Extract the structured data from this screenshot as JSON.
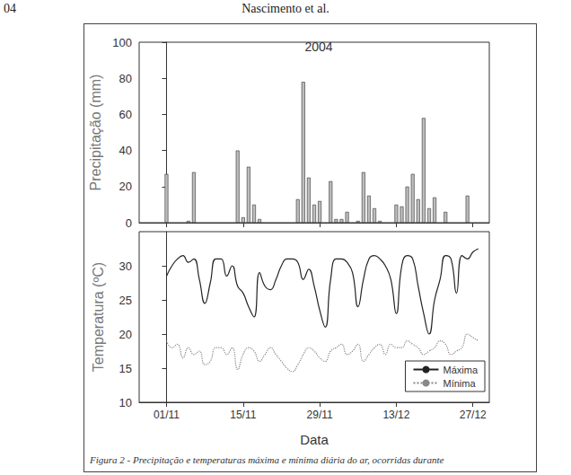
{
  "header": {
    "page": "04",
    "authors": "Nascimento et al."
  },
  "caption": "Figura 2 - Precipitação e temperaturas máxima e mínima diária do ar, ocorridas durante",
  "chart_data": [
    {
      "type": "bar",
      "title": "2004",
      "ylabel": "Precipitação (mm)",
      "x": [
        0,
        4,
        5,
        13,
        14,
        15,
        16,
        17,
        24,
        25,
        26,
        27,
        28,
        30,
        31,
        32,
        33,
        35,
        36,
        37,
        38,
        39,
        42,
        43,
        44,
        45,
        46,
        47,
        48,
        49,
        51,
        55
      ],
      "values": [
        27,
        1,
        28,
        40,
        3,
        31,
        10,
        2,
        13,
        78,
        25,
        10,
        12,
        23,
        2,
        2,
        6,
        1,
        28,
        15,
        8,
        1,
        10,
        9,
        20,
        27,
        13,
        58,
        8,
        14,
        6,
        15
      ],
      "color": "#bdbdbd",
      "xlim": [
        -5,
        59
      ],
      "xticks": [
        {
          "value": 0,
          "label": "01/11"
        },
        {
          "value": 14,
          "label": "15/11"
        },
        {
          "value": 28,
          "label": "29/11"
        },
        {
          "value": 42,
          "label": "13/12"
        },
        {
          "value": 56,
          "label": "27/12"
        }
      ],
      "ylim": [
        0,
        100
      ],
      "yticks": [
        0,
        20,
        40,
        60,
        80,
        100
      ],
      "tick_labels": "y",
      "grid": false
    },
    {
      "type": "line",
      "xlabel": "Data",
      "ylabel": "Temperatura (ºC)",
      "x": [
        0,
        1,
        2,
        3,
        4,
        5,
        6,
        7,
        8,
        9,
        10,
        11,
        12,
        13,
        14,
        15,
        16,
        17,
        18,
        19,
        20,
        21,
        22,
        23,
        24,
        25,
        26,
        27,
        28,
        29,
        30,
        31,
        32,
        33,
        34,
        35,
        36,
        37,
        38,
        39,
        40,
        41,
        42,
        43,
        44,
        45,
        46,
        47,
        48,
        49,
        50,
        51,
        52,
        53,
        54,
        55,
        56,
        57
      ],
      "series": [
        {
          "name": "Máxima",
          "color": "#222222",
          "line_style": "solid",
          "values": [
            28.5,
            30,
            31,
            31.5,
            30.5,
            31,
            28,
            24.5,
            27.5,
            31,
            31,
            28.5,
            30,
            27,
            26,
            24,
            22.5,
            29,
            27,
            26.5,
            28,
            30,
            31,
            31,
            30.5,
            28,
            29.5,
            27,
            23.5,
            21,
            28,
            31,
            31,
            30.5,
            29,
            24,
            28,
            31,
            31.5,
            31,
            30,
            28,
            23,
            30,
            31.5,
            31,
            27,
            23,
            20,
            25,
            28,
            31.5,
            31,
            26,
            31.5,
            31,
            32,
            32.5
          ]
        },
        {
          "name": "Mínima",
          "color": "#888888",
          "line_style": "dotted",
          "values": [
            19,
            18,
            18.5,
            16.5,
            18,
            17,
            17.5,
            15.5,
            16,
            18,
            18,
            17,
            18,
            14.8,
            17,
            18,
            17.5,
            16,
            17,
            18,
            17,
            16,
            15,
            14.5,
            15.5,
            17,
            18,
            17.5,
            16.5,
            16,
            17.5,
            18,
            18.5,
            17,
            17.5,
            18.5,
            16,
            17,
            18,
            18.5,
            17,
            18.5,
            18,
            18,
            19,
            18.5,
            18,
            17,
            17.5,
            18,
            19,
            18.5,
            17,
            17.5,
            18,
            20,
            19.5,
            19
          ]
        }
      ],
      "xlim": [
        -5,
        59
      ],
      "xticks": [
        {
          "value": 0,
          "label": "01/11"
        },
        {
          "value": 14,
          "label": "15/11"
        },
        {
          "value": 28,
          "label": "29/11"
        },
        {
          "value": 42,
          "label": "13/12"
        },
        {
          "value": 56,
          "label": "27/12"
        }
      ],
      "ylim": [
        10,
        35
      ],
      "yticks": [
        10,
        15,
        20,
        25,
        30
      ],
      "legend": "lower right",
      "grid": false
    }
  ]
}
